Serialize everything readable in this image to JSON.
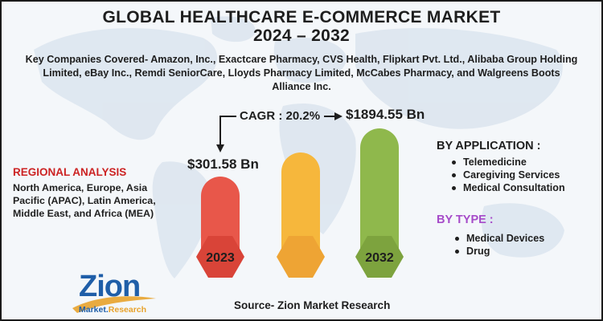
{
  "title_line1": "GLOBAL HEALTHCARE E-COMMERCE MARKET",
  "title_line2": "2024 – 2032",
  "companies": "Key Companies Covered- Amazon, Inc., Exactcare Pharmacy, CVS Health, Flipkart Pvt. Ltd., Alibaba Group Holding Limited, eBay Inc., Remdi SeniorCare, Lloyds Pharmacy Limited, McCabes Pharmacy, and Walgreens Boots Alliance Inc.",
  "cagr_label": "CAGR : 20.2%",
  "chart_data": {
    "type": "bar",
    "categories": [
      "2023",
      "",
      "2032"
    ],
    "values": [
      301.58,
      null,
      1894.55
    ],
    "value_labels": [
      "$301.58 Bn",
      "",
      "$1894.55 Bn"
    ],
    "cagr": "CAGR : 20.2%",
    "bar_colors": [
      "#e8574a",
      "#f6b73c",
      "#8fb84c"
    ],
    "title": "",
    "xlabel": "",
    "ylabel": ""
  },
  "regional": {
    "heading": "REGIONAL ANALYSIS",
    "text": "North America, Europe, Asia Pacific (APAC), Latin America, Middle East, and Africa (MEA)"
  },
  "application": {
    "heading": "BY APPLICATION :",
    "items": [
      "Telemedicine",
      "Caregiving Services",
      "Medical Consultation"
    ]
  },
  "type": {
    "heading": "BY TYPE :",
    "items": [
      "Medical Devices",
      "Drug"
    ]
  },
  "source": "Source- Zion Market Research",
  "logo": {
    "name": "Zion",
    "sub_left": "Market.",
    "sub_right": "Research"
  },
  "colors": {
    "region_heading": "#cc2323",
    "type_heading": "#a64bc9",
    "logo": "#1f5ea8"
  }
}
